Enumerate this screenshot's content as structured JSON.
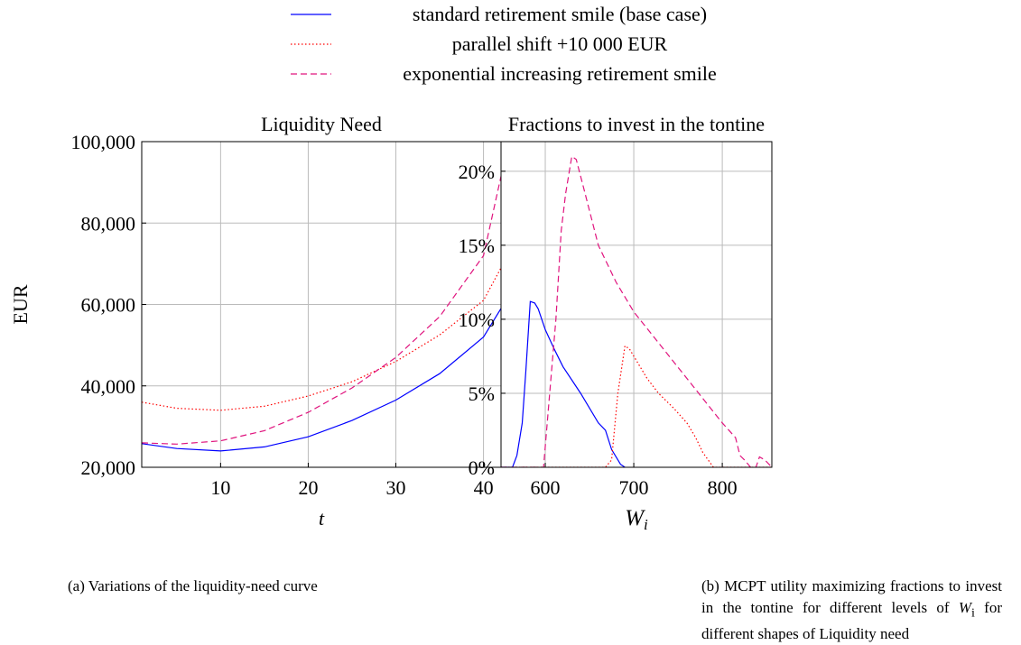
{
  "legend": {
    "position": "top"
  },
  "chart_data": [
    {
      "type": "line",
      "title": "Liquidity Need",
      "xlabel": "t",
      "ylabel": "EUR",
      "grid": true,
      "caption": "(a) Variations of the liquidity-need curve",
      "xlim": [
        1,
        42
      ],
      "xticks": [
        10,
        20,
        30,
        40
      ],
      "ylim": [
        20000,
        100000
      ],
      "yticks": [
        {
          "value": 20000,
          "label": "20,000"
        },
        {
          "value": 40000,
          "label": "40,000"
        },
        {
          "value": 60000,
          "label": "60,000"
        },
        {
          "value": 80000,
          "label": "80,000"
        },
        {
          "value": 100000,
          "label": "100,000"
        }
      ],
      "x": [
        1,
        5,
        10,
        15,
        20,
        25,
        30,
        35,
        40,
        42
      ],
      "series": [
        {
          "name": "standard retirement smile (base case)",
          "color": "#0000ff",
          "style": "solid",
          "values": [
            25800,
            24600,
            24000,
            25000,
            27500,
            31500,
            36500,
            43000,
            52000,
            59000
          ]
        },
        {
          "name": "parallel shift +10 000 EUR",
          "color": "#ff0000",
          "style": "dotted",
          "values": [
            36000,
            34500,
            34000,
            35000,
            37500,
            41000,
            46000,
            52500,
            61000,
            69000
          ]
        },
        {
          "name": "exponential increasing retirement smile",
          "color": "#e0147e",
          "style": "dashed",
          "values": [
            26000,
            25700,
            26500,
            29000,
            33500,
            39500,
            47000,
            57000,
            72000,
            91500
          ]
        }
      ]
    },
    {
      "type": "line",
      "title": "Fractions to invest in the tontine",
      "xlabel": "W",
      "xlabel_sub": "i",
      "grid": true,
      "caption": [
        "(b) MCPT utility maximizing fractions to invest in the tontine for different levels of ",
        "W",
        "i",
        " for different shapes of Liquidity need"
      ],
      "xlim": [
        550,
        856
      ],
      "xticks": [
        600,
        700,
        800
      ],
      "ylim": [
        0,
        22
      ],
      "yticks": [
        {
          "value": 0,
          "label": "0%"
        },
        {
          "value": 5,
          "label": "5%"
        },
        {
          "value": 10,
          "label": "10%"
        },
        {
          "value": 15,
          "label": "15%"
        },
        {
          "value": 20,
          "label": "20%"
        }
      ],
      "series": [
        {
          "color": "#0000ff",
          "style": "solid",
          "x": [
            550,
            563,
            568,
            574,
            578,
            583,
            588,
            592,
            600,
            610,
            620,
            640,
            660,
            668,
            675,
            685,
            690
          ],
          "values": [
            0,
            0,
            0.8,
            3,
            6.5,
            11.2,
            11.1,
            10.7,
            9.3,
            8,
            6.8,
            5,
            3,
            2.5,
            1.2,
            0.2,
            0
          ]
        },
        {
          "color": "#ff0000",
          "style": "dotted",
          "x": [
            550,
            668,
            675,
            682,
            690,
            695,
            705,
            715,
            728,
            745,
            760,
            770,
            778,
            790,
            856
          ],
          "values": [
            0,
            0,
            0.5,
            5,
            8.2,
            8,
            7,
            6,
            5,
            4,
            3,
            2,
            1,
            0,
            0
          ]
        },
        {
          "color": "#e0147e",
          "style": "dashed",
          "x": [
            550,
            598,
            605,
            612,
            618,
            623,
            630,
            635,
            645,
            660,
            680,
            700,
            720,
            740,
            760,
            780,
            800,
            815,
            820,
            825,
            832,
            838,
            842,
            848,
            856
          ],
          "values": [
            0,
            0,
            5,
            10,
            16,
            18.5,
            21,
            20.8,
            18.5,
            15,
            12.5,
            10.5,
            9,
            7.5,
            6,
            4.5,
            3,
            2,
            0.8,
            0.5,
            0,
            0,
            0.7,
            0.5,
            0
          ]
        }
      ]
    }
  ]
}
